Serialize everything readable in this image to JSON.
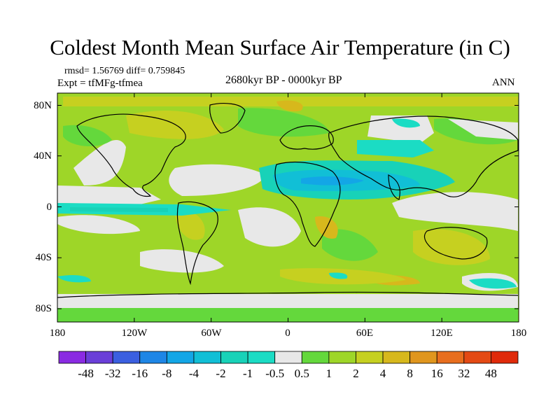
{
  "title": "Coldest Month Mean Surface Air Temperature (in C)",
  "stats": "rmsd= 1.56769 diff= 0.759845",
  "experiment": "Expt = tfMFg-tfmea",
  "period": "2680kyr BP - 0000kyr BP",
  "season": "ANN",
  "lat_labels": [
    "80N",
    "40N",
    "0",
    "40S",
    "80S"
  ],
  "lon_labels": [
    "180",
    "120W",
    "60W",
    "0",
    "60E",
    "120E",
    "180"
  ],
  "colorbar": {
    "labels": [
      "-48",
      "-32",
      "-16",
      "-8",
      "-4",
      "-2",
      "-1",
      "-0.5",
      "0.5",
      "1",
      "2",
      "4",
      "8",
      "16",
      "32",
      "48"
    ],
    "colors": [
      "#8a2be2",
      "#6a3fd8",
      "#3b5fe0",
      "#1e86e6",
      "#13a6e6",
      "#11bfd6",
      "#18d2b8",
      "#1bdcc4",
      "#e8e8e8",
      "#64d83c",
      "#9ed628",
      "#c6d020",
      "#d7b81c",
      "#e0961e",
      "#e86e1e",
      "#e44a14",
      "#e02a0a"
    ]
  },
  "palette": {
    "neutral": "#e8e8e8",
    "pos1": "#64d83c",
    "pos2": "#9ed628",
    "pos4": "#c6d020",
    "pos8": "#d7b81c",
    "pos16": "#e0961e",
    "neg05": "#1bdcc4",
    "neg1": "#18d2b8",
    "neg2": "#11bfd6",
    "neg4": "#13a6e6"
  }
}
